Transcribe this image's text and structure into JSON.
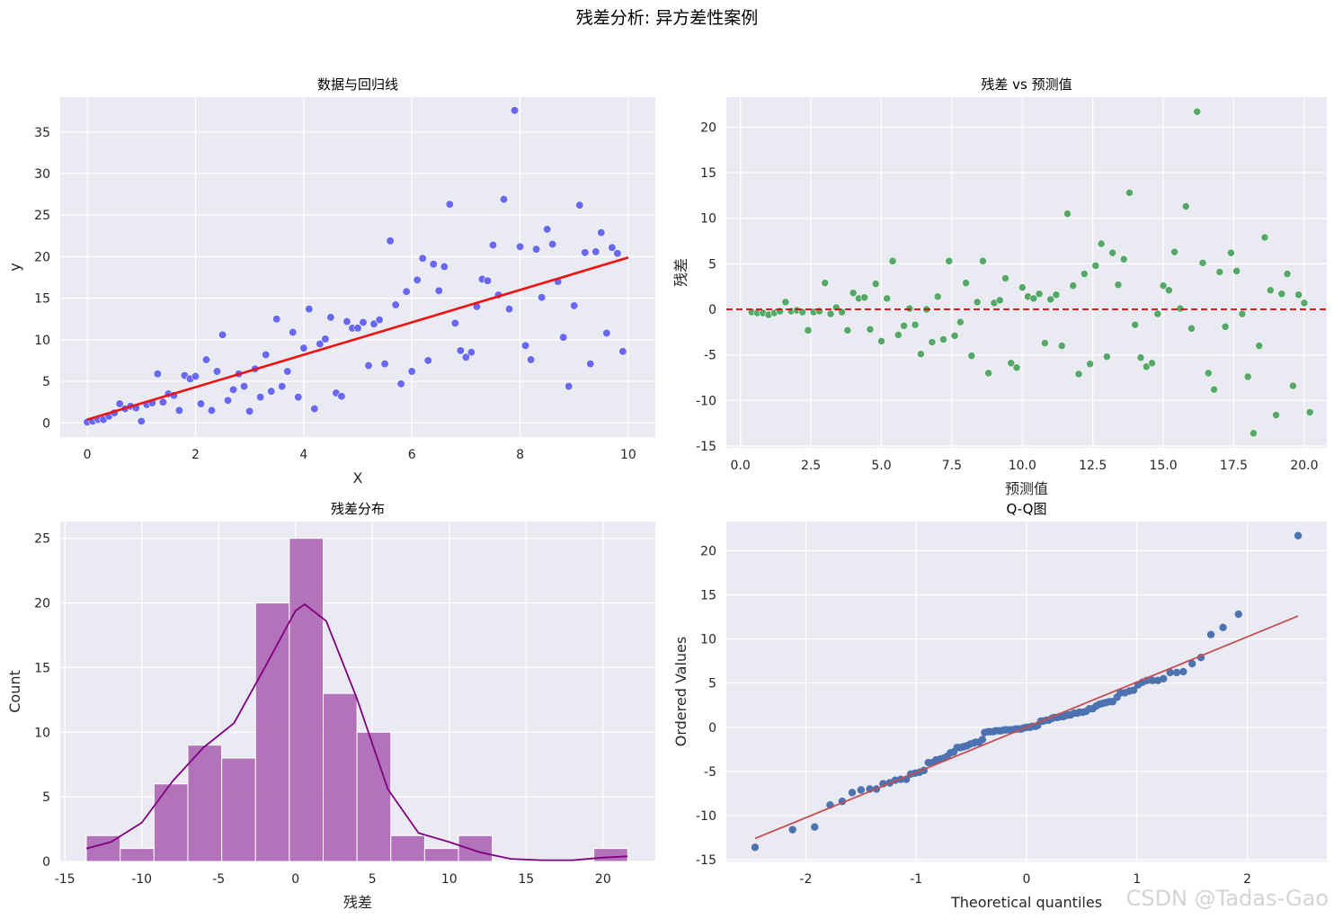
{
  "figure": {
    "title": "残差分析: 异方差性案例",
    "watermark": "CSDN @Tadas-Gao"
  },
  "colors": {
    "panel_bg": "#eaeaf2",
    "grid": "#ffffff",
    "scatter1": "#5a5af0",
    "regline": "#ee1111",
    "scatter2": "#55a868",
    "zero_line": "#dd0000",
    "hist": "#b06db6",
    "kde": "#800080",
    "qq_points": "#4c72b0",
    "qq_line": "#c44e52"
  },
  "chart_data": [
    {
      "type": "scatter",
      "title": "数据与回归线",
      "xlabel": "X",
      "ylabel": "y",
      "xlim": [
        -0.5,
        10.5
      ],
      "ylim": [
        -1.7,
        39.2
      ],
      "xticks": [
        0,
        2,
        4,
        6,
        8,
        10
      ],
      "yticks": [
        0,
        5,
        10,
        15,
        20,
        25,
        30,
        35
      ],
      "grid": true,
      "regression_line": {
        "x": [
          0,
          10
        ],
        "y": [
          0.4,
          19.9
        ]
      },
      "points": [
        [
          0.0,
          0.1
        ],
        [
          0.1,
          0.2
        ],
        [
          0.2,
          0.4
        ],
        [
          0.3,
          0.4
        ],
        [
          0.4,
          0.8
        ],
        [
          0.5,
          1.2
        ],
        [
          0.6,
          2.3
        ],
        [
          0.7,
          1.7
        ],
        [
          0.8,
          2.0
        ],
        [
          0.9,
          1.8
        ],
        [
          1.0,
          0.2
        ],
        [
          1.1,
          2.2
        ],
        [
          1.2,
          2.4
        ],
        [
          1.3,
          5.9
        ],
        [
          1.4,
          2.5
        ],
        [
          1.5,
          3.5
        ],
        [
          1.6,
          3.3
        ],
        [
          1.7,
          1.5
        ],
        [
          1.8,
          5.7
        ],
        [
          1.9,
          5.3
        ],
        [
          2.0,
          5.6
        ],
        [
          2.1,
          2.3
        ],
        [
          2.2,
          7.6
        ],
        [
          2.3,
          1.5
        ],
        [
          2.4,
          6.2
        ],
        [
          2.5,
          10.6
        ],
        [
          2.6,
          2.7
        ],
        [
          2.7,
          4.0
        ],
        [
          2.8,
          5.9
        ],
        [
          2.9,
          4.4
        ],
        [
          3.0,
          1.4
        ],
        [
          3.1,
          6.5
        ],
        [
          3.2,
          3.1
        ],
        [
          3.3,
          8.2
        ],
        [
          3.4,
          3.8
        ],
        [
          3.5,
          12.5
        ],
        [
          3.6,
          4.4
        ],
        [
          3.7,
          6.2
        ],
        [
          3.8,
          10.9
        ],
        [
          3.9,
          3.1
        ],
        [
          4.0,
          9.0
        ],
        [
          4.1,
          13.7
        ],
        [
          4.2,
          1.7
        ],
        [
          4.3,
          9.5
        ],
        [
          4.4,
          10.1
        ],
        [
          4.5,
          12.7
        ],
        [
          4.6,
          3.6
        ],
        [
          4.7,
          3.2
        ],
        [
          4.8,
          12.2
        ],
        [
          4.9,
          11.4
        ],
        [
          5.0,
          11.4
        ],
        [
          5.1,
          12.1
        ],
        [
          5.2,
          6.9
        ],
        [
          5.3,
          11.9
        ],
        [
          5.4,
          12.4
        ],
        [
          5.5,
          7.1
        ],
        [
          5.6,
          21.9
        ],
        [
          5.7,
          14.2
        ],
        [
          5.8,
          4.7
        ],
        [
          5.9,
          15.8
        ],
        [
          6.0,
          6.2
        ],
        [
          6.1,
          17.2
        ],
        [
          6.2,
          19.8
        ],
        [
          6.3,
          7.5
        ],
        [
          6.4,
          19.1
        ],
        [
          6.5,
          15.9
        ],
        [
          6.6,
          18.8
        ],
        [
          6.7,
          26.3
        ],
        [
          6.8,
          12.0
        ],
        [
          6.9,
          8.7
        ],
        [
          7.0,
          7.9
        ],
        [
          7.1,
          8.5
        ],
        [
          7.2,
          14.0
        ],
        [
          7.3,
          17.3
        ],
        [
          7.4,
          17.1
        ],
        [
          7.5,
          21.4
        ],
        [
          7.6,
          15.4
        ],
        [
          7.7,
          26.9
        ],
        [
          7.8,
          13.7
        ],
        [
          7.9,
          37.6
        ],
        [
          8.0,
          21.2
        ],
        [
          8.1,
          9.3
        ],
        [
          8.2,
          7.6
        ],
        [
          8.3,
          20.9
        ],
        [
          8.4,
          15.1
        ],
        [
          8.5,
          23.3
        ],
        [
          8.6,
          21.5
        ],
        [
          8.7,
          17.0
        ],
        [
          8.8,
          10.3
        ],
        [
          8.9,
          4.4
        ],
        [
          9.0,
          14.1
        ],
        [
          9.1,
          26.2
        ],
        [
          9.2,
          20.5
        ],
        [
          9.3,
          7.1
        ],
        [
          9.4,
          20.6
        ],
        [
          9.5,
          22.9
        ],
        [
          9.6,
          10.8
        ],
        [
          9.7,
          21.1
        ],
        [
          9.8,
          20.4
        ],
        [
          9.9,
          8.6
        ]
      ]
    },
    {
      "type": "scatter",
      "title": "残差 vs 预测值",
      "xlabel": "预测值",
      "ylabel": "残差",
      "xlim": [
        -0.5,
        20.8
      ],
      "ylim": [
        -15.2,
        23.3
      ],
      "xticks": [
        0.0,
        2.5,
        5.0,
        7.5,
        10.0,
        12.5,
        15.0,
        17.5,
        20.0
      ],
      "xtick_labels": [
        "0.0",
        "2.5",
        "5.0",
        "7.5",
        "10.0",
        "12.5",
        "15.0",
        "17.5",
        "20.0"
      ],
      "yticks": [
        -15,
        -10,
        -5,
        0,
        5,
        10,
        15,
        20
      ],
      "grid": true,
      "reference_line_y": 0,
      "points": [
        [
          0.4,
          -0.3
        ],
        [
          0.6,
          -0.4
        ],
        [
          0.8,
          -0.4
        ],
        [
          1.0,
          -0.6
        ],
        [
          1.2,
          -0.4
        ],
        [
          1.4,
          -0.2
        ],
        [
          1.6,
          0.8
        ],
        [
          1.8,
          -0.2
        ],
        [
          2.0,
          -0.1
        ],
        [
          2.2,
          -0.3
        ],
        [
          2.4,
          -2.3
        ],
        [
          2.6,
          -0.3
        ],
        [
          2.8,
          -0.2
        ],
        [
          3.0,
          2.9
        ],
        [
          3.2,
          -0.5
        ],
        [
          3.4,
          0.2
        ],
        [
          3.6,
          -0.3
        ],
        [
          3.8,
          -2.3
        ],
        [
          4.0,
          1.8
        ],
        [
          4.2,
          1.2
        ],
        [
          4.4,
          1.3
        ],
        [
          4.6,
          -2.2
        ],
        [
          4.8,
          2.8
        ],
        [
          5.0,
          -3.5
        ],
        [
          5.2,
          1.2
        ],
        [
          5.4,
          5.3
        ],
        [
          5.6,
          -2.8
        ],
        [
          5.8,
          -1.8
        ],
        [
          6.0,
          0.1
        ],
        [
          6.2,
          -1.7
        ],
        [
          6.4,
          -4.9
        ],
        [
          6.6,
          0.0
        ],
        [
          6.8,
          -3.6
        ],
        [
          7.0,
          1.4
        ],
        [
          7.2,
          -3.3
        ],
        [
          7.4,
          5.3
        ],
        [
          7.6,
          -2.9
        ],
        [
          7.8,
          -1.4
        ],
        [
          8.0,
          2.9
        ],
        [
          8.2,
          -5.1
        ],
        [
          8.4,
          0.8
        ],
        [
          8.6,
          5.3
        ],
        [
          8.8,
          -7.0
        ],
        [
          9.0,
          0.7
        ],
        [
          9.2,
          1.0
        ],
        [
          9.4,
          3.4
        ],
        [
          9.6,
          -5.9
        ],
        [
          9.8,
          -6.4
        ],
        [
          10.0,
          2.4
        ],
        [
          10.2,
          1.4
        ],
        [
          10.4,
          1.2
        ],
        [
          10.6,
          1.7
        ],
        [
          10.8,
          -3.7
        ],
        [
          11.0,
          1.1
        ],
        [
          11.2,
          1.6
        ],
        [
          11.4,
          -4.0
        ],
        [
          11.6,
          10.5
        ],
        [
          11.8,
          2.6
        ],
        [
          12.0,
          -7.1
        ],
        [
          12.2,
          3.9
        ],
        [
          12.4,
          -6.0
        ],
        [
          12.6,
          4.8
        ],
        [
          12.8,
          7.2
        ],
        [
          13.0,
          -5.2
        ],
        [
          13.2,
          6.2
        ],
        [
          13.4,
          2.7
        ],
        [
          13.6,
          5.5
        ],
        [
          13.8,
          12.8
        ],
        [
          14.0,
          -1.7
        ],
        [
          14.2,
          -5.3
        ],
        [
          14.4,
          -6.3
        ],
        [
          14.6,
          -5.9
        ],
        [
          14.8,
          -0.5
        ],
        [
          15.0,
          2.6
        ],
        [
          15.2,
          2.1
        ],
        [
          15.4,
          6.3
        ],
        [
          15.6,
          0.1
        ],
        [
          15.8,
          11.3
        ],
        [
          16.0,
          -2.1
        ],
        [
          16.2,
          21.7
        ],
        [
          16.4,
          5.1
        ],
        [
          16.6,
          -7.0
        ],
        [
          16.8,
          -8.8
        ],
        [
          17.0,
          4.1
        ],
        [
          17.2,
          -1.9
        ],
        [
          17.4,
          6.2
        ],
        [
          17.6,
          4.2
        ],
        [
          17.8,
          -0.5
        ],
        [
          18.0,
          -7.4
        ],
        [
          18.2,
          -13.6
        ],
        [
          18.4,
          -4.0
        ],
        [
          18.6,
          7.9
        ],
        [
          18.8,
          2.1
        ],
        [
          19.0,
          -11.6
        ],
        [
          19.2,
          1.7
        ],
        [
          19.4,
          3.9
        ],
        [
          19.6,
          -8.4
        ],
        [
          19.8,
          1.6
        ],
        [
          20.0,
          0.7
        ],
        [
          20.2,
          -11.3
        ]
      ]
    },
    {
      "type": "bar",
      "title": "残差分布",
      "xlabel": "残差",
      "ylabel": "Count",
      "xlim": [
        -15.3,
        23.4
      ],
      "ylim": [
        0,
        26.3
      ],
      "xticks": [
        -15,
        -10,
        -5,
        0,
        5,
        10,
        15,
        20
      ],
      "yticks": [
        0,
        5,
        10,
        15,
        20,
        25
      ],
      "grid": true,
      "bin_edges": [
        -13.6,
        -11.4,
        -9.2,
        -7.0,
        -4.8,
        -2.6,
        -0.4,
        1.8,
        4.0,
        6.2,
        8.4,
        10.6,
        12.8,
        15.0,
        17.2,
        19.4,
        21.6
      ],
      "counts": [
        2,
        1,
        6,
        9,
        8,
        20,
        25,
        13,
        10,
        2,
        1,
        2,
        0,
        0,
        0,
        1
      ],
      "kde": {
        "x": [
          -13.6,
          -12,
          -10,
          -8,
          -6,
          -4,
          -2,
          0,
          0.6,
          2,
          4,
          6,
          8,
          10,
          12,
          14,
          16,
          18,
          20,
          21.6
        ],
        "y": [
          1.0,
          1.5,
          3.0,
          6.2,
          8.8,
          10.7,
          15.0,
          19.4,
          19.9,
          18.6,
          12.6,
          5.6,
          2.2,
          1.5,
          0.7,
          0.2,
          0.1,
          0.1,
          0.3,
          0.4
        ]
      }
    },
    {
      "type": "scatter",
      "title": "Q-Q图",
      "xlabel": "Theoretical quantiles",
      "ylabel": "Ordered Values",
      "xlim": [
        -2.72,
        2.72
      ],
      "ylim": [
        -15.2,
        23.3
      ],
      "xticks": [
        -2,
        -1,
        0,
        1,
        2
      ],
      "yticks": [
        -15,
        -10,
        -5,
        0,
        5,
        10,
        15,
        20
      ],
      "grid": true,
      "reference_line": {
        "x": [
          -2.46,
          2.46
        ],
        "y": [
          -12.6,
          12.6
        ]
      },
      "points": [
        [
          -2.46,
          -13.6
        ],
        [
          -2.12,
          -11.6
        ],
        [
          -1.92,
          -11.3
        ],
        [
          -1.78,
          -8.8
        ],
        [
          -1.67,
          -8.4
        ],
        [
          -1.58,
          -7.4
        ],
        [
          -1.5,
          -7.1
        ],
        [
          -1.42,
          -7.0
        ],
        [
          -1.36,
          -7.0
        ],
        [
          -1.3,
          -6.4
        ],
        [
          -1.24,
          -6.3
        ],
        [
          -1.19,
          -6.0
        ],
        [
          -1.14,
          -5.9
        ],
        [
          -1.09,
          -5.9
        ],
        [
          -1.05,
          -5.3
        ],
        [
          -1.01,
          -5.2
        ],
        [
          -0.97,
          -5.1
        ],
        [
          -0.93,
          -4.9
        ],
        [
          -0.89,
          -4.0
        ],
        [
          -0.85,
          -4.0
        ],
        [
          -0.82,
          -3.7
        ],
        [
          -0.78,
          -3.6
        ],
        [
          -0.75,
          -3.5
        ],
        [
          -0.72,
          -3.3
        ],
        [
          -0.69,
          -2.9
        ],
        [
          -0.66,
          -2.8
        ],
        [
          -0.63,
          -2.3
        ],
        [
          -0.6,
          -2.3
        ],
        [
          -0.57,
          -2.2
        ],
        [
          -0.54,
          -2.1
        ],
        [
          -0.51,
          -1.9
        ],
        [
          -0.48,
          -1.8
        ],
        [
          -0.46,
          -1.7
        ],
        [
          -0.43,
          -1.7
        ],
        [
          -0.4,
          -1.4
        ],
        [
          -0.38,
          -0.6
        ],
        [
          -0.35,
          -0.5
        ],
        [
          -0.33,
          -0.5
        ],
        [
          -0.3,
          -0.5
        ],
        [
          -0.28,
          -0.4
        ],
        [
          -0.25,
          -0.4
        ],
        [
          -0.23,
          -0.4
        ],
        [
          -0.2,
          -0.3
        ],
        [
          -0.18,
          -0.3
        ],
        [
          -0.15,
          -0.3
        ],
        [
          -0.13,
          -0.3
        ],
        [
          -0.1,
          -0.2
        ],
        [
          -0.08,
          -0.2
        ],
        [
          -0.05,
          -0.2
        ],
        [
          -0.03,
          -0.1
        ],
        [
          0.0,
          0.0
        ],
        [
          0.03,
          0.0
        ],
        [
          0.05,
          0.1
        ],
        [
          0.08,
          0.1
        ],
        [
          0.1,
          0.2
        ],
        [
          0.13,
          0.7
        ],
        [
          0.15,
          0.7
        ],
        [
          0.18,
          0.8
        ],
        [
          0.2,
          0.8
        ],
        [
          0.23,
          1.0
        ],
        [
          0.25,
          1.1
        ],
        [
          0.28,
          1.1
        ],
        [
          0.3,
          1.2
        ],
        [
          0.33,
          1.2
        ],
        [
          0.35,
          1.3
        ],
        [
          0.38,
          1.4
        ],
        [
          0.4,
          1.4
        ],
        [
          0.43,
          1.6
        ],
        [
          0.46,
          1.6
        ],
        [
          0.48,
          1.7
        ],
        [
          0.51,
          1.7
        ],
        [
          0.54,
          1.8
        ],
        [
          0.57,
          2.1
        ],
        [
          0.6,
          2.1
        ],
        [
          0.63,
          2.4
        ],
        [
          0.66,
          2.6
        ],
        [
          0.69,
          2.7
        ],
        [
          0.72,
          2.8
        ],
        [
          0.75,
          2.9
        ],
        [
          0.78,
          2.9
        ],
        [
          0.82,
          3.4
        ],
        [
          0.85,
          3.9
        ],
        [
          0.89,
          3.9
        ],
        [
          0.93,
          4.1
        ],
        [
          0.97,
          4.2
        ],
        [
          1.01,
          4.8
        ],
        [
          1.05,
          5.1
        ],
        [
          1.09,
          5.3
        ],
        [
          1.14,
          5.3
        ],
        [
          1.19,
          5.3
        ],
        [
          1.24,
          5.5
        ],
        [
          1.3,
          6.2
        ],
        [
          1.36,
          6.2
        ],
        [
          1.42,
          6.3
        ],
        [
          1.5,
          7.2
        ],
        [
          1.58,
          7.9
        ],
        [
          1.67,
          10.5
        ],
        [
          1.78,
          11.3
        ],
        [
          1.92,
          12.8
        ],
        [
          2.46,
          21.7
        ]
      ]
    }
  ]
}
